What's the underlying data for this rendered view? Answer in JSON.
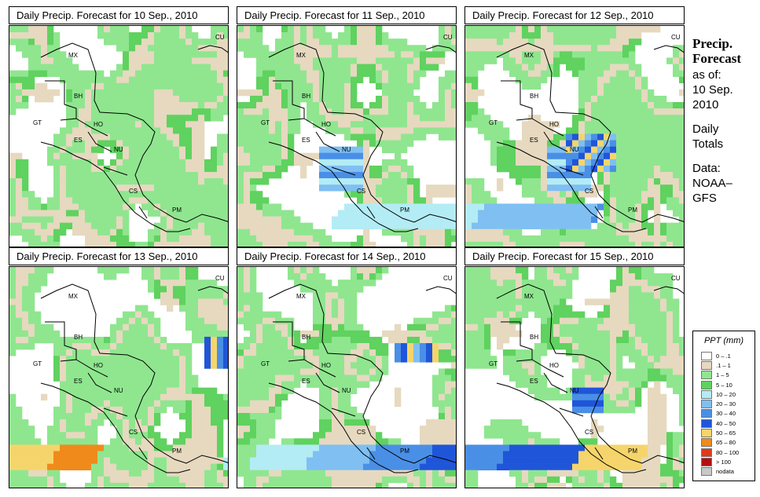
{
  "panels": [
    {
      "title": "Daily Precip. Forecast for  10 Sep., 2010"
    },
    {
      "title": "Daily Precip. Forecast for  11 Sep., 2010"
    },
    {
      "title": "Daily Precip. Forecast for  12 Sep., 2010"
    },
    {
      "title": "Daily Precip. Forecast for  13 Sep., 2010"
    },
    {
      "title": "Daily Precip. Forecast for  14 Sep., 2010"
    },
    {
      "title": "Daily Precip. Forecast for  15 Sep., 2010"
    }
  ],
  "country_labels": [
    "MX",
    "BH",
    "GT",
    "HO",
    "ES",
    "NU",
    "CS",
    "PM",
    "CU"
  ],
  "side": {
    "title_line1": "Precip.",
    "title_line2": "Forecast",
    "asof": "as of:",
    "date_line1": "10 Sep.",
    "date_line2": "2010",
    "daily_line1": "Daily",
    "daily_line2": "Totals",
    "data_line1": "Data:",
    "data_line2": "NOAA–",
    "data_line3": "GFS"
  },
  "legend": {
    "title": "PPT (mm)",
    "items": [
      {
        "label": "0 – .1",
        "color": "#ffffff"
      },
      {
        "label": ".1 – 1",
        "color": "#e6d9bf"
      },
      {
        "label": "1 – 5",
        "color": "#8fe68f"
      },
      {
        "label": "5 – 10",
        "color": "#5fd25f"
      },
      {
        "label": "10 – 20",
        "color": "#b3ecf5"
      },
      {
        "label": "20 – 30",
        "color": "#7fbff2"
      },
      {
        "label": "30 – 40",
        "color": "#4a8fe6"
      },
      {
        "label": "40 – 50",
        "color": "#1f55d9"
      },
      {
        "label": "50 – 65",
        "color": "#f5d56b"
      },
      {
        "label": "65 – 80",
        "color": "#f08a1a"
      },
      {
        "label": "80 – 100",
        "color": "#e03a1a"
      },
      {
        "label": "> 100",
        "color": "#b40f0f"
      },
      {
        "label": "nodata",
        "color": "#c8c8c8"
      }
    ]
  }
}
